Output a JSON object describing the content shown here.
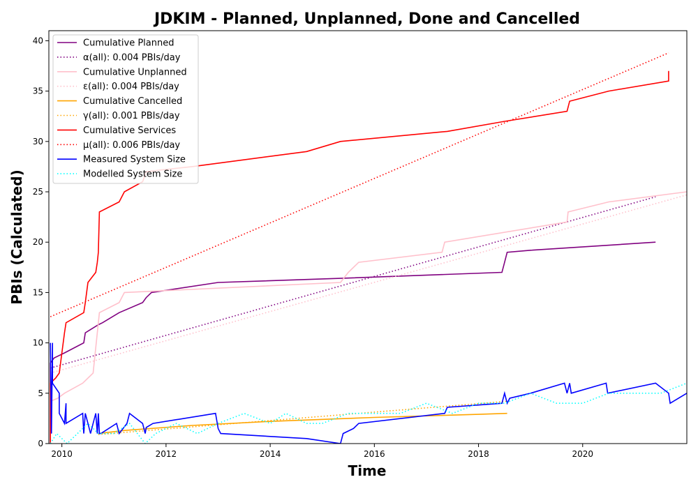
{
  "chart_data": {
    "type": "line",
    "title": "JDKIM - Planned, Unplanned, Done  and Cancelled",
    "xlabel": "Time",
    "ylabel": "PBIs (Calculated)",
    "xlim": [
      2009.75,
      2022.0
    ],
    "ylim": [
      0,
      41
    ],
    "xticks": [
      2010,
      2012,
      2014,
      2016,
      2018,
      2020
    ],
    "yticks": [
      0,
      5,
      10,
      15,
      20,
      25,
      30,
      35,
      40
    ],
    "grid": false,
    "legend_position": "upper-left",
    "series": [
      {
        "name": "Cumulative Planned",
        "color": "#800080",
        "style": "solid",
        "x": [
          2009.78,
          2009.78,
          2009.85,
          2010.05,
          2010.42,
          2010.45,
          2010.7,
          2010.78,
          2011.1,
          2011.55,
          2011.62,
          2011.72,
          2013.0,
          2015.3,
          2018.45,
          2018.5,
          2018.55,
          2019.0,
          2021.4
        ],
        "y": [
          0,
          8,
          8.5,
          9,
          10,
          11,
          11.8,
          12,
          13,
          14,
          14.5,
          15,
          16,
          16.4,
          17,
          18,
          19,
          19.2,
          20
        ]
      },
      {
        "name": "α(all): 0.004 PBIs/day",
        "color": "#800080",
        "style": "dotted",
        "x": [
          2009.78,
          2021.4
        ],
        "y": [
          7.5,
          24.5
        ]
      },
      {
        "name": "Cumulative Unplanned",
        "color": "#ffc0cb",
        "style": "solid",
        "x": [
          2009.78,
          2009.78,
          2009.92,
          2010.05,
          2010.4,
          2010.6,
          2010.68,
          2010.72,
          2011.1,
          2011.2,
          2015.35,
          2015.5,
          2015.7,
          2017.3,
          2017.35,
          2019.7,
          2019.72,
          2020.5,
          2022.0
        ],
        "y": [
          0,
          4.2,
          4.5,
          5,
          6,
          7,
          11,
          13,
          14,
          15,
          16,
          17,
          18,
          19,
          20,
          22,
          23,
          24,
          25
        ]
      },
      {
        "name": "ε(all): 0.004 PBIs/day",
        "color": "#ffc0cb",
        "style": "dotted",
        "x": [
          2009.78,
          2022.0
        ],
        "y": [
          7,
          24.7
        ]
      },
      {
        "name": "Cumulative Cancelled",
        "color": "#ffa500",
        "style": "solid",
        "x": [
          2010.7,
          2011.2,
          2012.5,
          2014.0,
          2016.0,
          2018.0,
          2018.55
        ],
        "y": [
          1,
          1.3,
          1.8,
          2.2,
          2.6,
          2.9,
          3
        ]
      },
      {
        "name": "γ(all): 0.001 PBIs/day",
        "color": "#ffa500",
        "style": "dotted",
        "x": [
          2010.7,
          2018.55
        ],
        "y": [
          0.9,
          4.2
        ]
      },
      {
        "name": "Cumulative Services",
        "color": "#ff0000",
        "style": "solid",
        "x": [
          2009.78,
          2009.78,
          2009.88,
          2009.95,
          2010.05,
          2010.08,
          2010.42,
          2010.45,
          2010.5,
          2010.65,
          2010.68,
          2010.7,
          2010.72,
          2011.1,
          2011.2,
          2011.55,
          2011.62,
          2012.5,
          2014.7,
          2015.35,
          2017.4,
          2018.5,
          2019.7,
          2019.75,
          2020.5,
          2021.65,
          2021.65
        ],
        "y": [
          0,
          6,
          6.5,
          7,
          11,
          12,
          13,
          14,
          16,
          17,
          18,
          19,
          23,
          24,
          25,
          26,
          27,
          27.5,
          29,
          30,
          31,
          32,
          33,
          34,
          35,
          36,
          37
        ]
      },
      {
        "name": "μ(all): 0.006 PBIs/day",
        "color": "#ff0000",
        "style": "dotted",
        "x": [
          2009.78,
          2021.65
        ],
        "y": [
          12.6,
          38.8
        ]
      },
      {
        "name": "Measured System Size",
        "color": "#0000ff",
        "style": "solid",
        "x": [
          2009.78,
          2009.8,
          2009.82,
          2009.82,
          2009.95,
          2009.95,
          2010.05,
          2010.08,
          2010.08,
          2010.4,
          2010.42,
          2010.45,
          2010.5,
          2010.55,
          2010.6,
          2010.65,
          2010.68,
          2010.7,
          2010.72,
          2010.75,
          2011.05,
          2011.1,
          2011.25,
          2011.3,
          2011.55,
          2011.6,
          2011.62,
          2011.75,
          2012.95,
          2013.0,
          2013.05,
          2014.7,
          2015.35,
          2015.4,
          2015.6,
          2015.7,
          2017.35,
          2017.4,
          2018.45,
          2018.5,
          2018.55,
          2018.6,
          2019.0,
          2019.65,
          2019.7,
          2019.75,
          2019.78,
          2020.45,
          2020.48,
          2021.4,
          2021.65,
          2021.68,
          2022.0
        ],
        "y": [
          10,
          1,
          10,
          6,
          5,
          3,
          2,
          4,
          2,
          3,
          1,
          3,
          2,
          1,
          2,
          3,
          1,
          3,
          1,
          1,
          2,
          1,
          2,
          3,
          2,
          1,
          1.6,
          2,
          3,
          1.5,
          1,
          0.5,
          0,
          1,
          1.5,
          2,
          3,
          3.6,
          4,
          5,
          4,
          4.5,
          5,
          6,
          5,
          6,
          5,
          6,
          5,
          6,
          5,
          4,
          5
        ]
      },
      {
        "name": "Modelled System Size",
        "color": "#00ffff",
        "style": "dotted",
        "x": [
          2009.78,
          2009.9,
          2010.1,
          2010.3,
          2010.5,
          2010.7,
          2011.0,
          2011.3,
          2011.6,
          2011.8,
          2012.2,
          2012.6,
          2013.0,
          2013.5,
          2014.0,
          2014.3,
          2014.7,
          2015.0,
          2015.5,
          2016.0,
          2016.5,
          2017.0,
          2017.5,
          2018.0,
          2018.5,
          2019.0,
          2019.5,
          2020.0,
          2020.5,
          2021.0,
          2021.5,
          2022.0
        ],
        "y": [
          0,
          1,
          0,
          1,
          2,
          1,
          1,
          2,
          0,
          1,
          2,
          1,
          2,
          3,
          2,
          3,
          2,
          2,
          3,
          3,
          3,
          4,
          3,
          4,
          4,
          5,
          4,
          4,
          5,
          5,
          5,
          6
        ]
      }
    ]
  }
}
